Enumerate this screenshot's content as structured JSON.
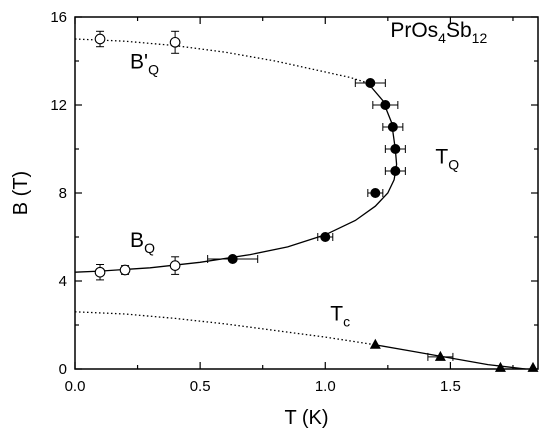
{
  "chart_data": {
    "type": "scatter",
    "xlabel": "T (K)",
    "ylabel": "B (T)",
    "xlim": [
      0.0,
      1.85
    ],
    "ylim": [
      0,
      16
    ],
    "x_ticks": [
      0.0,
      0.5,
      1.0,
      1.5
    ],
    "x_tick_labels": [
      "0.0",
      "0.5",
      "1.0",
      "1.5"
    ],
    "y_ticks": [
      0,
      4,
      8,
      12,
      16
    ],
    "y_tick_labels": [
      "0",
      "4",
      "8",
      "12",
      "16"
    ],
    "grid": false,
    "series": [
      {
        "marker": "open-circle",
        "points": [
          {
            "x": 0.1,
            "y": 15.0,
            "yerr": 0.35
          },
          {
            "x": 0.4,
            "y": 14.85,
            "yerr": 0.5
          },
          {
            "x": 0.1,
            "y": 4.4,
            "yerr": 0.35
          },
          {
            "x": 0.2,
            "y": 4.5,
            "yerr": 0.2
          },
          {
            "x": 0.4,
            "y": 4.7,
            "yerr": 0.4
          }
        ]
      },
      {
        "marker": "filled-circle",
        "points": [
          {
            "x": 1.18,
            "y": 13.0,
            "xerr": 0.06
          },
          {
            "x": 1.24,
            "y": 12.0,
            "xerr": 0.05
          },
          {
            "x": 1.27,
            "y": 11.0,
            "xerr": 0.04
          },
          {
            "x": 1.28,
            "y": 10.0,
            "xerr": 0.04
          },
          {
            "x": 1.28,
            "y": 9.0,
            "xerr": 0.04
          },
          {
            "x": 1.2,
            "y": 8.0,
            "xerr": 0.03
          },
          {
            "x": 1.0,
            "y": 6.0,
            "xerr": 0.03
          },
          {
            "x": 0.63,
            "y": 5.0,
            "xerr": 0.1
          }
        ]
      },
      {
        "marker": "filled-triangle",
        "points": [
          {
            "x": 1.2,
            "y": 1.1
          },
          {
            "x": 1.46,
            "y": 0.55,
            "xerr": 0.05
          },
          {
            "x": 1.7,
            "y": 0.05
          },
          {
            "x": 1.83,
            "y": 0.05
          }
        ]
      }
    ],
    "curves": [
      {
        "style": "dotted",
        "points": [
          [
            0.0,
            15.0
          ],
          [
            0.2,
            14.9
          ],
          [
            0.4,
            14.7
          ],
          [
            0.6,
            14.4
          ],
          [
            0.8,
            14.0
          ],
          [
            1.0,
            13.5
          ],
          [
            1.1,
            13.25
          ],
          [
            1.17,
            13.0
          ]
        ]
      },
      {
        "style": "solid",
        "points": [
          [
            1.17,
            13.0
          ],
          [
            1.23,
            12.2
          ],
          [
            1.265,
            11.2
          ],
          [
            1.28,
            10.0
          ],
          [
            1.285,
            9.3
          ],
          [
            1.275,
            8.6
          ],
          [
            1.25,
            8.0
          ],
          [
            1.2,
            7.4
          ],
          [
            1.12,
            6.75
          ],
          [
            1.0,
            6.1
          ],
          [
            0.85,
            5.55
          ],
          [
            0.7,
            5.2
          ],
          [
            0.5,
            4.85
          ],
          [
            0.3,
            4.6
          ],
          [
            0.1,
            4.45
          ],
          [
            0.0,
            4.4
          ]
        ]
      },
      {
        "style": "dotted",
        "points": [
          [
            0.0,
            2.6
          ],
          [
            0.2,
            2.5
          ],
          [
            0.4,
            2.3
          ],
          [
            0.6,
            2.05
          ],
          [
            0.8,
            1.75
          ],
          [
            1.0,
            1.45
          ],
          [
            1.2,
            1.1
          ]
        ]
      },
      {
        "style": "solid",
        "points": [
          [
            1.2,
            1.1
          ],
          [
            1.35,
            0.8
          ],
          [
            1.5,
            0.5
          ],
          [
            1.65,
            0.2
          ],
          [
            1.8,
            0.0
          ]
        ]
      }
    ],
    "annotations": [
      {
        "base": "B'",
        "sub": "Q",
        "x": 0.22,
        "y": 13.65
      },
      {
        "base": "B",
        "sub": "Q",
        "x": 0.22,
        "y": 5.55
      },
      {
        "base": "T",
        "sub": "Q",
        "x": 1.44,
        "y": 9.35
      },
      {
        "base": "T",
        "sub": "c",
        "x": 1.02,
        "y": 2.2
      },
      {
        "parts": [
          "PrOs",
          "4",
          "Sb",
          "12"
        ],
        "x": 1.26,
        "y": 15.1
      }
    ]
  }
}
